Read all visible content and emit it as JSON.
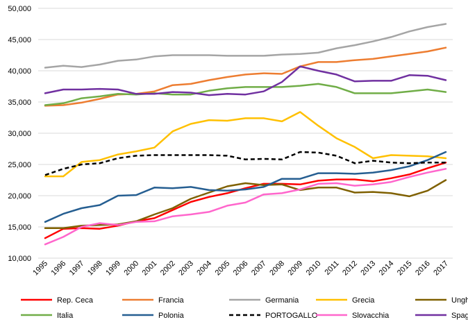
{
  "chart_data": {
    "type": "line",
    "title": "",
    "xlabel": "",
    "ylabel": "",
    "ylim": [
      10000,
      50000
    ],
    "yticks": [
      10000,
      15000,
      20000,
      25000,
      30000,
      35000,
      40000,
      45000,
      50000
    ],
    "ytick_labels": [
      "10,000",
      "15,000",
      "20,000",
      "25,000",
      "30,000",
      "35,000",
      "40,000",
      "45,000",
      "50,000"
    ],
    "grid": true,
    "legend_position": "bottom",
    "categories": [
      "1995",
      "1996",
      "1997",
      "1998",
      "1999",
      "2000",
      "2001",
      "2002",
      "2003",
      "2004",
      "2005",
      "2006",
      "2007",
      "2008",
      "2009",
      "2010",
      "2011",
      "2012",
      "2013",
      "2014",
      "2015",
      "2016",
      "2017"
    ],
    "series": [
      {
        "name": "Rep. Ceca",
        "color": "#ff0000",
        "dash": "solid",
        "values": [
          13200,
          14700,
          14800,
          14700,
          15200,
          15900,
          16400,
          17700,
          19000,
          19800,
          20400,
          21200,
          21900,
          21900,
          21800,
          22400,
          22600,
          22600,
          22300,
          22800,
          23400,
          24400,
          25300
        ]
      },
      {
        "name": "Francia",
        "color": "#ed7d31",
        "dash": "solid",
        "values": [
          34400,
          34500,
          34900,
          35500,
          36200,
          36300,
          36700,
          37700,
          37900,
          38500,
          39000,
          39400,
          39600,
          39500,
          40700,
          41400,
          41400,
          41700,
          41900,
          42300,
          42700,
          43100,
          43700
        ]
      },
      {
        "name": "Germania",
        "color": "#a5a5a5",
        "dash": "solid",
        "values": [
          40500,
          40800,
          40600,
          41000,
          41600,
          41800,
          42300,
          42500,
          42500,
          42500,
          42400,
          42400,
          42400,
          42600,
          42700,
          42900,
          43600,
          44100,
          44700,
          45400,
          46300,
          47000,
          47500
        ]
      },
      {
        "name": "Grecia",
        "color": "#ffc000",
        "dash": "solid",
        "values": [
          23100,
          23100,
          25400,
          25700,
          26600,
          27100,
          27700,
          30300,
          31500,
          32100,
          32000,
          32400,
          32400,
          31900,
          33400,
          31200,
          29200,
          27800,
          26000,
          26500,
          26400,
          26300,
          26000
        ]
      },
      {
        "name": "Ungheria",
        "color": "#7f6000",
        "dash": "solid",
        "values": [
          14800,
          14800,
          15200,
          15300,
          15400,
          15900,
          17000,
          18000,
          19500,
          20500,
          21500,
          22000,
          21700,
          21800,
          20900,
          21300,
          21300,
          20500,
          20600,
          20400,
          19900,
          20800,
          22500
        ]
      },
      {
        "name": "Italia",
        "color": "#70ad47",
        "dash": "solid",
        "values": [
          34500,
          34800,
          35600,
          35900,
          36300,
          36200,
          36400,
          36200,
          36200,
          36800,
          37200,
          37400,
          37400,
          37400,
          37600,
          37900,
          37400,
          36400,
          36400,
          36400,
          36700,
          37000,
          36600
        ]
      },
      {
        "name": "Polonia",
        "color": "#255e91",
        "dash": "solid",
        "values": [
          15800,
          17100,
          18000,
          18500,
          20000,
          20100,
          21300,
          21200,
          21400,
          20900,
          20800,
          21000,
          21400,
          22700,
          22700,
          23600,
          23600,
          23500,
          23700,
          24100,
          24700,
          25700,
          27000
        ]
      },
      {
        "name": "PORTOGALLO",
        "color": "#000000",
        "dash": "dashed",
        "values": [
          23300,
          24300,
          25000,
          25200,
          26000,
          26400,
          26500,
          26500,
          26500,
          26500,
          26400,
          25800,
          25900,
          25800,
          27000,
          26900,
          26400,
          25200,
          25600,
          25300,
          25200,
          25300,
          25300
        ]
      },
      {
        "name": "Slovacchia",
        "color": "#ff66cc",
        "dash": "solid",
        "values": [
          12200,
          13400,
          15000,
          15600,
          15300,
          15800,
          15900,
          16700,
          17000,
          17400,
          18400,
          18900,
          20200,
          20400,
          21000,
          21900,
          22000,
          21600,
          21800,
          22200,
          23000,
          23700,
          24300
        ]
      },
      {
        "name": "Spagna",
        "color": "#7030a0",
        "dash": "solid",
        "values": [
          36400,
          37000,
          37000,
          37100,
          37000,
          36300,
          36300,
          36600,
          36500,
          36100,
          36300,
          36200,
          36700,
          38200,
          40700,
          40000,
          39400,
          38300,
          38400,
          38400,
          39300,
          39200,
          38500
        ]
      }
    ]
  }
}
